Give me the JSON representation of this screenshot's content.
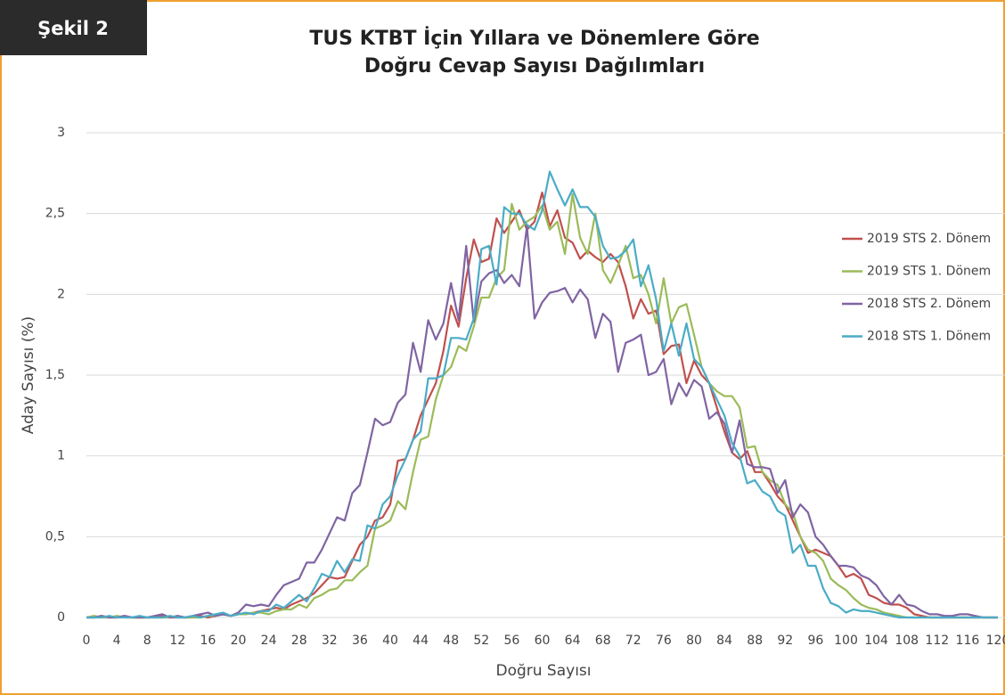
{
  "chart_data": {
    "type": "line",
    "label": "Şekil 2",
    "title": [
      "TUS KTBT İçin Yıllara ve Dönemlere Göre",
      "Doğru Cevap Sayısı Dağılımları"
    ],
    "x_label": "Doğru Sayısı",
    "y_label": "Aday Sayısı (%)",
    "x": [
      0,
      1,
      2,
      3,
      4,
      5,
      6,
      7,
      8,
      9,
      10,
      11,
      12,
      13,
      14,
      15,
      16,
      17,
      18,
      19,
      20,
      21,
      22,
      23,
      24,
      25,
      26,
      27,
      28,
      29,
      30,
      31,
      32,
      33,
      34,
      35,
      36,
      37,
      38,
      39,
      40,
      41,
      42,
      43,
      44,
      45,
      46,
      47,
      48,
      49,
      50,
      51,
      52,
      53,
      54,
      55,
      56,
      57,
      58,
      59,
      60,
      61,
      62,
      63,
      64,
      65,
      66,
      67,
      68,
      69,
      70,
      71,
      72,
      73,
      74,
      75,
      76,
      77,
      78,
      79,
      80,
      81,
      82,
      83,
      84,
      85,
      86,
      87,
      88,
      89,
      90,
      91,
      92,
      93,
      94,
      95,
      96,
      97,
      98,
      99,
      100,
      101,
      102,
      103,
      104,
      105,
      106,
      107,
      108,
      109,
      110,
      111,
      112,
      113,
      114,
      115,
      116,
      117,
      118,
      119,
      120
    ],
    "xlim": [
      0,
      120
    ],
    "xticks": [
      0,
      4,
      8,
      12,
      16,
      20,
      24,
      28,
      32,
      36,
      40,
      44,
      48,
      52,
      56,
      60,
      64,
      68,
      72,
      76,
      80,
      84,
      88,
      92,
      96,
      100,
      104,
      108,
      112,
      116,
      120
    ],
    "ylim": [
      0,
      3
    ],
    "yticks": [
      0,
      {
        "value": 0.5,
        "label": "0,5"
      },
      1,
      {
        "value": 1.5,
        "label": "1,5"
      },
      2,
      {
        "value": 2.5,
        "label": "2,5"
      },
      3
    ],
    "grid": true,
    "legend": "right",
    "series": [
      {
        "name": "2019 STS 2. Dönem",
        "color": "#c0504d",
        "values": [
          0,
          0,
          0.01,
          0,
          0,
          0.01,
          0,
          0,
          0,
          0,
          0.01,
          0,
          0,
          0,
          0,
          0.01,
          0,
          0.01,
          0.02,
          0.01,
          0.02,
          0.02,
          0.03,
          0.04,
          0.05,
          0.06,
          0.05,
          0.08,
          0.1,
          0.12,
          0.15,
          0.2,
          0.25,
          0.24,
          0.25,
          0.35,
          0.45,
          0.5,
          0.6,
          0.62,
          0.7,
          0.97,
          0.98,
          1.1,
          1.25,
          1.35,
          1.45,
          1.65,
          1.93,
          1.8,
          2.1,
          2.34,
          2.2,
          2.22,
          2.47,
          2.38,
          2.45,
          2.52,
          2.4,
          2.45,
          2.63,
          2.42,
          2.52,
          2.35,
          2.32,
          2.22,
          2.27,
          2.23,
          2.2,
          2.25,
          2.2,
          2.05,
          1.85,
          1.97,
          1.88,
          1.9,
          1.63,
          1.68,
          1.69,
          1.45,
          1.59,
          1.5,
          1.45,
          1.3,
          1.15,
          1.02,
          0.98,
          1.03,
          0.9,
          0.9,
          0.83,
          0.75,
          0.7,
          0.6,
          0.5,
          0.4,
          0.42,
          0.4,
          0.38,
          0.32,
          0.25,
          0.27,
          0.24,
          0.14,
          0.12,
          0.09,
          0.08,
          0.08,
          0.06,
          0.02,
          0.01,
          0,
          0,
          0,
          0,
          0,
          0,
          0,
          0,
          0,
          0
        ]
      },
      {
        "name": "2019 STS 1. Dönem",
        "color": "#9bbb59",
        "values": [
          0,
          0.01,
          0,
          0,
          0.01,
          0,
          0,
          0,
          0,
          0,
          0,
          0,
          0.01,
          0,
          0,
          0,
          0.01,
          0.01,
          0.02,
          0.01,
          0.02,
          0.02,
          0.03,
          0.03,
          0.02,
          0.04,
          0.05,
          0.05,
          0.08,
          0.06,
          0.12,
          0.14,
          0.17,
          0.18,
          0.23,
          0.23,
          0.28,
          0.32,
          0.55,
          0.57,
          0.6,
          0.72,
          0.67,
          0.9,
          1.1,
          1.12,
          1.35,
          1.5,
          1.55,
          1.68,
          1.65,
          1.8,
          1.98,
          1.98,
          2.1,
          2.15,
          2.56,
          2.4,
          2.45,
          2.48,
          2.55,
          2.4,
          2.45,
          2.25,
          2.62,
          2.35,
          2.25,
          2.5,
          2.15,
          2.07,
          2.18,
          2.3,
          2.1,
          2.12,
          2.0,
          1.82,
          2.1,
          1.82,
          1.92,
          1.94,
          1.75,
          1.55,
          1.45,
          1.4,
          1.37,
          1.37,
          1.3,
          1.05,
          1.06,
          0.9,
          0.85,
          0.82,
          0.7,
          0.65,
          0.5,
          0.42,
          0.4,
          0.35,
          0.24,
          0.2,
          0.17,
          0.12,
          0.08,
          0.06,
          0.05,
          0.03,
          0.02,
          0.01,
          0,
          0,
          0,
          0,
          0,
          0,
          0,
          0,
          0,
          0,
          0,
          0,
          0
        ]
      },
      {
        "name": "2018 STS 2. Dönem",
        "color": "#8064a2",
        "values": [
          0,
          0,
          0.01,
          0,
          0,
          0.01,
          0,
          0,
          0,
          0.01,
          0.02,
          0,
          0.01,
          0,
          0.01,
          0.02,
          0.03,
          0.01,
          0.02,
          0.01,
          0.03,
          0.08,
          0.07,
          0.08,
          0.07,
          0.14,
          0.2,
          0.22,
          0.24,
          0.34,
          0.34,
          0.42,
          0.52,
          0.62,
          0.6,
          0.77,
          0.82,
          1.02,
          1.23,
          1.19,
          1.21,
          1.33,
          1.38,
          1.7,
          1.52,
          1.84,
          1.72,
          1.82,
          2.07,
          1.84,
          2.3,
          1.83,
          2.08,
          2.13,
          2.15,
          2.07,
          2.12,
          2.05,
          2.42,
          1.85,
          1.95,
          2.01,
          2.02,
          2.04,
          1.95,
          2.03,
          1.97,
          1.73,
          1.88,
          1.83,
          1.52,
          1.7,
          1.72,
          1.75,
          1.5,
          1.52,
          1.6,
          1.32,
          1.45,
          1.37,
          1.47,
          1.43,
          1.23,
          1.27,
          1.2,
          1.02,
          1.22,
          0.95,
          0.93,
          0.93,
          0.92,
          0.77,
          0.85,
          0.62,
          0.7,
          0.65,
          0.5,
          0.45,
          0.38,
          0.32,
          0.32,
          0.31,
          0.26,
          0.24,
          0.2,
          0.13,
          0.08,
          0.14,
          0.08,
          0.07,
          0.04,
          0.02,
          0.02,
          0.01,
          0.01,
          0.02,
          0.02,
          0.01,
          0,
          0,
          0
        ]
      },
      {
        "name": "2018 STS 1. Dönem",
        "color": "#4bacc6",
        "values": [
          0,
          0,
          0,
          0.01,
          0,
          0,
          0,
          0.01,
          0,
          0,
          0,
          0.01,
          0,
          0,
          0.01,
          0,
          0.01,
          0.02,
          0.03,
          0.01,
          0.02,
          0.03,
          0.02,
          0.04,
          0.04,
          0.08,
          0.06,
          0.1,
          0.14,
          0.1,
          0.18,
          0.27,
          0.25,
          0.35,
          0.28,
          0.36,
          0.35,
          0.57,
          0.55,
          0.7,
          0.75,
          0.88,
          0.98,
          1.1,
          1.15,
          1.48,
          1.48,
          1.5,
          1.73,
          1.73,
          1.72,
          1.85,
          2.28,
          2.3,
          2.06,
          2.54,
          2.5,
          2.5,
          2.43,
          2.4,
          2.52,
          2.76,
          2.65,
          2.55,
          2.65,
          2.54,
          2.54,
          2.48,
          2.3,
          2.22,
          2.23,
          2.27,
          2.34,
          2.05,
          2.18,
          1.97,
          1.65,
          1.82,
          1.62,
          1.82,
          1.6,
          1.55,
          1.45,
          1.35,
          1.25,
          1.08,
          1.0,
          0.83,
          0.85,
          0.78,
          0.75,
          0.66,
          0.63,
          0.4,
          0.45,
          0.32,
          0.32,
          0.18,
          0.09,
          0.07,
          0.03,
          0.05,
          0.04,
          0.04,
          0.03,
          0.02,
          0.01,
          0,
          0,
          0,
          0,
          0,
          0,
          0,
          0,
          0,
          0,
          0,
          0,
          0,
          0
        ]
      }
    ]
  }
}
